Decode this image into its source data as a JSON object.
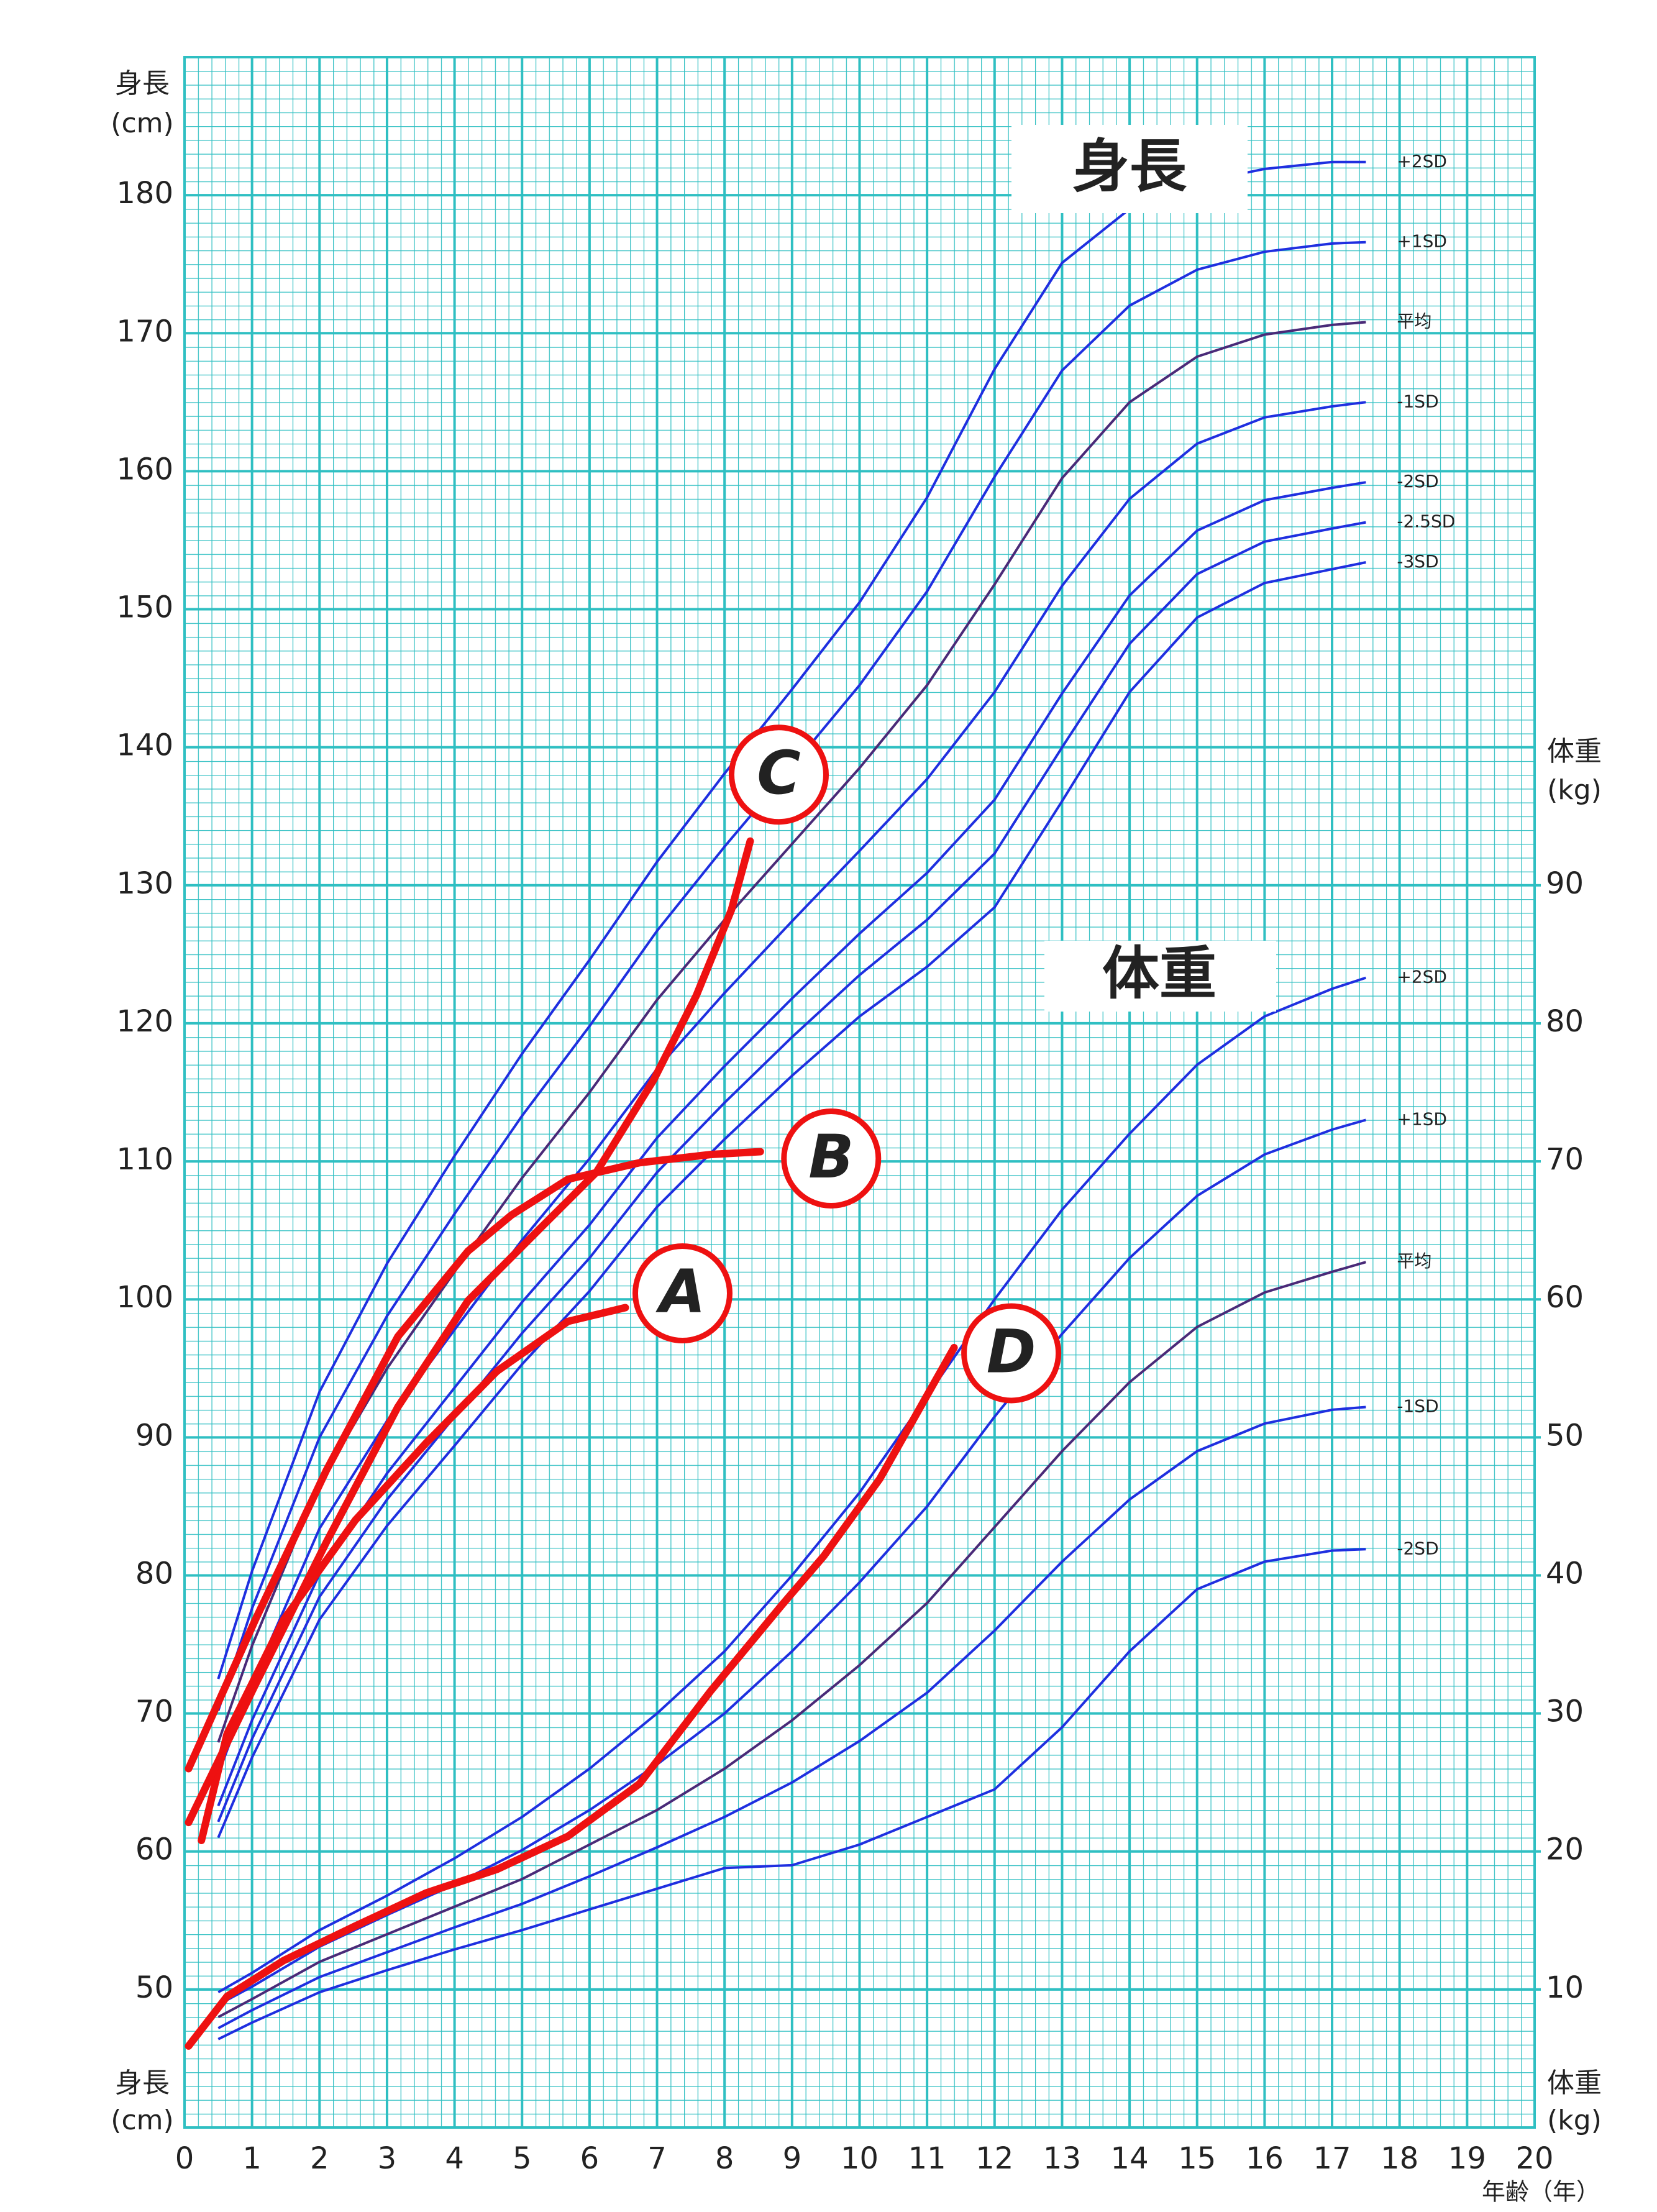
{
  "chart_data": {
    "type": "line",
    "height_heading": "身長",
    "weight_heading": "体重",
    "y_label": [
      "身長",
      "(cm)"
    ],
    "y2_label": [
      "体重",
      "(kg)"
    ],
    "x_label": "年齢（年）",
    "xlim": [
      0,
      20
    ],
    "xticks": [
      0,
      1,
      2,
      3,
      4,
      5,
      6,
      7,
      8,
      9,
      10,
      11,
      12,
      13,
      14,
      15,
      16,
      17,
      18,
      19,
      20
    ],
    "ylim": [
      40,
      190
    ],
    "yticks": [
      50,
      60,
      70,
      80,
      90,
      100,
      110,
      120,
      130,
      140,
      150,
      160,
      170,
      180
    ],
    "y2lim": [
      0,
      150
    ],
    "y2ticks": [
      10,
      20,
      30,
      40,
      50,
      60,
      70,
      80,
      90
    ],
    "grid": true,
    "series": [
      {
        "name": "+2SD",
        "color": "#1f2fe0",
        "x": [
          0.5,
          1,
          2,
          3,
          4,
          5,
          6,
          7,
          8,
          9,
          10,
          11,
          12,
          13,
          14,
          15,
          16,
          17,
          17.5
        ],
        "values": [
          72.5,
          80.3,
          93.3,
          102.6,
          110.4,
          117.8,
          124.6,
          131.7,
          138.1,
          144.2,
          150.5,
          158.1,
          167.4,
          175.1,
          179.0,
          180.9,
          181.9,
          182.4,
          182.4
        ]
      },
      {
        "name": "+1SD",
        "color": "#1f2fe0",
        "x": [
          0.5,
          1,
          2,
          3,
          4,
          5,
          6,
          7,
          8,
          9,
          10,
          11,
          12,
          13,
          14,
          15,
          16,
          17,
          17.5
        ],
        "values": [
          70.2,
          77.6,
          90.0,
          98.8,
          106.2,
          113.3,
          119.8,
          126.7,
          132.8,
          138.6,
          144.5,
          151.3,
          159.6,
          167.3,
          172.0,
          174.6,
          175.9,
          176.5,
          176.6
        ]
      },
      {
        "name": "平均",
        "color": "#4a2a78",
        "x": [
          0.5,
          1,
          2,
          3,
          4,
          5,
          6,
          7,
          8,
          9,
          10,
          11,
          12,
          13,
          14,
          15,
          16,
          17,
          17.5
        ],
        "values": [
          67.9,
          74.9,
          86.7,
          95.0,
          102.0,
          108.8,
          115.0,
          121.7,
          127.5,
          133.0,
          138.5,
          144.5,
          151.8,
          159.5,
          165.0,
          168.3,
          169.9,
          170.6,
          170.8
        ]
      },
      {
        "name": "-1SD",
        "color": "#1f2fe0",
        "x": [
          0.5,
          1,
          2,
          3,
          4,
          5,
          6,
          7,
          8,
          9,
          10,
          11,
          12,
          13,
          14,
          15,
          16,
          17,
          17.5
        ],
        "values": [
          65.6,
          72.2,
          83.4,
          91.2,
          97.8,
          104.3,
          110.2,
          116.7,
          122.2,
          127.4,
          132.5,
          137.7,
          144.0,
          151.7,
          158.0,
          162.0,
          163.9,
          164.7,
          165.0
        ]
      },
      {
        "name": "-2SD",
        "color": "#1f2fe0",
        "x": [
          0.5,
          1,
          2,
          3,
          4,
          5,
          6,
          7,
          8,
          9,
          10,
          11,
          12,
          13,
          14,
          15,
          16,
          17,
          17.5
        ],
        "values": [
          63.3,
          69.5,
          80.1,
          87.4,
          93.6,
          99.8,
          105.4,
          111.7,
          116.9,
          121.8,
          126.5,
          130.9,
          136.2,
          143.9,
          151.0,
          155.7,
          157.9,
          158.8,
          159.2
        ]
      },
      {
        "name": "-2.5SD",
        "color": "#1f2fe0",
        "x": [
          0.5,
          1,
          2,
          3,
          4,
          5,
          6,
          7,
          8,
          9,
          10,
          11,
          12,
          13,
          14,
          15,
          16,
          17,
          17.5
        ],
        "values": [
          62.15,
          68.15,
          78.45,
          85.5,
          91.5,
          97.55,
          103.0,
          109.2,
          114.25,
          119.0,
          123.5,
          127.5,
          132.3,
          140.0,
          147.5,
          152.55,
          154.9,
          155.85,
          156.3
        ]
      },
      {
        "name": "-3SD",
        "color": "#1f2fe0",
        "x": [
          0.5,
          1,
          2,
          3,
          4,
          5,
          6,
          7,
          8,
          9,
          10,
          11,
          12,
          13,
          14,
          15,
          16,
          17,
          17.5
        ],
        "values": [
          61.0,
          66.8,
          76.8,
          83.6,
          89.4,
          95.3,
          100.6,
          106.7,
          111.6,
          116.2,
          120.5,
          124.1,
          128.4,
          136.1,
          144.0,
          149.4,
          151.9,
          152.9,
          153.4
        ]
      },
      {
        "name": "+2SD",
        "color": "#1f2fe0",
        "axis": "y2",
        "x": [
          0.5,
          1,
          2,
          3,
          4,
          5,
          6,
          7,
          8,
          9,
          10,
          11,
          12,
          13,
          14,
          15,
          16,
          17,
          17.5
        ],
        "values": [
          9.8,
          11.2,
          14.3,
          16.8,
          19.5,
          22.5,
          26,
          30,
          34.5,
          40,
          46,
          53,
          60,
          66.5,
          72,
          77,
          80.5,
          82.5,
          83.3
        ]
      },
      {
        "name": "+1SD",
        "color": "#1f2fe0",
        "axis": "y2",
        "x": [
          0.5,
          1,
          2,
          3,
          4,
          5,
          6,
          7,
          8,
          9,
          10,
          11,
          12,
          13,
          14,
          15,
          16,
          17,
          17.5
        ],
        "values": [
          8.9,
          10.2,
          13.1,
          15.4,
          17.6,
          20.1,
          23,
          26.3,
          30,
          34.5,
          39.5,
          45,
          51.5,
          57.5,
          63,
          67.5,
          70.5,
          72.3,
          73
        ]
      },
      {
        "name": "平均",
        "color": "#4a2a78",
        "axis": "y2",
        "x": [
          0.5,
          1,
          2,
          3,
          4,
          5,
          6,
          7,
          8,
          9,
          10,
          11,
          12,
          13,
          14,
          15,
          16,
          17,
          17.5
        ],
        "values": [
          8.0,
          9.3,
          12.0,
          14.0,
          16.0,
          18.0,
          20.5,
          23.0,
          26.0,
          29.5,
          33.5,
          38.0,
          43.5,
          49.0,
          54.0,
          58.0,
          60.5,
          62.0,
          62.7
        ]
      },
      {
        "name": "-1SD",
        "color": "#1f2fe0",
        "axis": "y2",
        "x": [
          0.5,
          1,
          2,
          3,
          4,
          5,
          6,
          7,
          8,
          9,
          10,
          11,
          12,
          13,
          14,
          15,
          16,
          17,
          17.5
        ],
        "values": [
          7.2,
          8.5,
          10.9,
          12.7,
          14.5,
          16.2,
          18.2,
          20.3,
          22.5,
          25,
          28,
          31.5,
          36,
          41,
          45.5,
          49,
          51,
          52,
          52.2
        ]
      },
      {
        "name": "-2SD",
        "color": "#1f2fe0",
        "axis": "y2",
        "x": [
          0.5,
          1,
          2,
          3,
          4,
          5,
          6,
          7,
          8,
          9,
          10,
          11,
          12,
          13,
          14,
          15,
          16,
          17,
          17.5
        ],
        "values": [
          6.4,
          7.6,
          9.8,
          11.4,
          12.9,
          14.3,
          15.8,
          17.3,
          18.8,
          19,
          20.5,
          22.5,
          24.5,
          29,
          34.5,
          39,
          41,
          41.8,
          41.9
        ]
      }
    ],
    "patients": [
      {
        "name": "A",
        "color": "#ee1111",
        "x": [
          0.25,
          0.63,
          1.47,
          2.53,
          3.58,
          4.63,
          5.68,
          6.53
        ],
        "values": [
          60.8,
          68.5,
          76.8,
          84.0,
          89.6,
          94.8,
          98.4,
          99.4
        ]
      },
      {
        "name": "B",
        "color": "#ee1111",
        "x": [
          0.06,
          1.05,
          2.1,
          3.16,
          4.2,
          4.84,
          5.68,
          6.74,
          7.8,
          8.53
        ],
        "values": [
          66.0,
          76.8,
          87.6,
          97.3,
          103.5,
          106.1,
          108.7,
          109.9,
          110.5,
          110.7
        ]
      },
      {
        "name": "C",
        "color": "#ee1111",
        "x": [
          0.06,
          1.05,
          2.1,
          3.16,
          4.2,
          5.26,
          6.1,
          6.95,
          7.58,
          8.1,
          8.38
        ],
        "values": [
          62.1,
          72.1,
          82.4,
          92.2,
          99.9,
          105.1,
          109.2,
          115.9,
          122.0,
          128.2,
          133.2
        ]
      },
      {
        "name": "D",
        "color": "#ee1111",
        "axis": "y2",
        "x": [
          0.06,
          0.63,
          1.47,
          2.53,
          3.58,
          4.63,
          5.68,
          6.74,
          7.79,
          8.84,
          9.47,
          10.3,
          11.4
        ],
        "values": [
          5.9,
          9.5,
          12.1,
          14.6,
          17,
          18.7,
          21.1,
          24.9,
          31.6,
          37.8,
          41.4,
          47,
          56.5
        ]
      }
    ]
  }
}
